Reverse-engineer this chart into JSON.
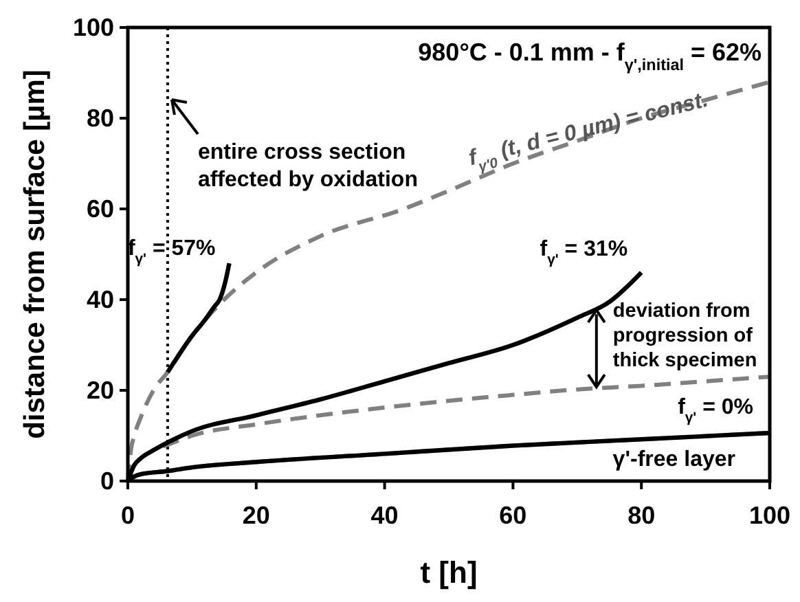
{
  "chart_data": {
    "type": "line",
    "title": "980°C - 0.1 mm - f$_{γ',initial}$ = 62%",
    "xlabel": "t [h]",
    "ylabel": "distance from surface [µm]",
    "xlim": [
      0,
      100
    ],
    "ylim": [
      0,
      100
    ],
    "xticks": [
      0,
      20,
      40,
      60,
      80,
      100
    ],
    "yticks": [
      0,
      20,
      40,
      60,
      80,
      100
    ],
    "grid": false,
    "series": [
      {
        "color": "#808080",
        "line_style": "dashed",
        "x": [
          0,
          0.5,
          1,
          2,
          4,
          6.2,
          10,
          15,
          20,
          30,
          43,
          50,
          60,
          70,
          80,
          90,
          100
        ],
        "values": [
          0,
          7,
          10,
          14,
          20,
          24,
          32,
          40,
          46,
          54,
          60,
          64,
          70,
          75,
          80,
          84,
          88
        ]
      },
      {
        "color": "#000000",
        "line_style": "solid",
        "x": [
          6.2,
          10,
          12,
          13.5,
          14.3,
          15.2,
          15.8
        ],
        "values": [
          24,
          32,
          35.5,
          38.5,
          40,
          44,
          48
        ]
      },
      {
        "color": "#808080",
        "line_style": "dashed",
        "x": [
          0,
          1,
          2,
          4,
          6.2,
          10,
          20,
          30,
          40,
          50,
          60,
          70,
          80,
          90,
          100
        ],
        "values": [
          0,
          3.5,
          5,
          6.8,
          8,
          10,
          12.5,
          14.5,
          16.2,
          17.7,
          19,
          20.2,
          21,
          22,
          23
        ]
      },
      {
        "color": "#000000",
        "line_style": "solid",
        "x": [
          0,
          1,
          2,
          4,
          6.2,
          10,
          20,
          30,
          40,
          50,
          60,
          70,
          75,
          80
        ],
        "values": [
          0,
          3.5,
          5,
          6.8,
          8.5,
          11,
          14.5,
          18,
          22,
          26,
          30,
          36,
          39.5,
          46
        ]
      },
      {
        "color": "#808080",
        "line_style": "dashed",
        "x": [
          0,
          1,
          2,
          6.2,
          10,
          20,
          40,
          60,
          80,
          100
        ],
        "values": [
          0,
          1,
          1.5,
          2.2,
          3,
          4.2,
          6,
          7.8,
          9.2,
          10.6
        ]
      },
      {
        "color": "#000000",
        "line_style": "solid",
        "x": [
          0,
          1,
          2,
          6.2,
          10,
          20,
          40,
          60,
          80,
          100
        ],
        "values": [
          0,
          1,
          1.5,
          2.2,
          3,
          4.2,
          6,
          7.8,
          9.2,
          10.6
        ]
      }
    ],
    "ref_lines": [
      {
        "axis": "x",
        "value": 6.2,
        "color": "#000000",
        "line_style": "dotted"
      }
    ],
    "annotations": [
      {
        "text": "entire cross section\naffected by oxidation",
        "x": 6.2,
        "y": 85
      },
      {
        "text": "f$_{γ'}$ = 57%",
        "x": 15.8,
        "y": 48
      },
      {
        "text": "f$_{γ'}$ = 31%",
        "x": 80,
        "y": 46
      },
      {
        "text": "f$_{γ'}$ = 0%",
        "x": 100,
        "y": 10.6
      },
      {
        "text": "γ'-free layer",
        "x": 100,
        "y": 10.6
      },
      {
        "text": "deviation from\nprogression of\nthick specimen",
        "x": 73,
        "y": 38
      },
      {
        "text": "f$_{γ'0}$ (t, d = 0 µm) = const.",
        "x": 72,
        "y": 78
      }
    ]
  }
}
